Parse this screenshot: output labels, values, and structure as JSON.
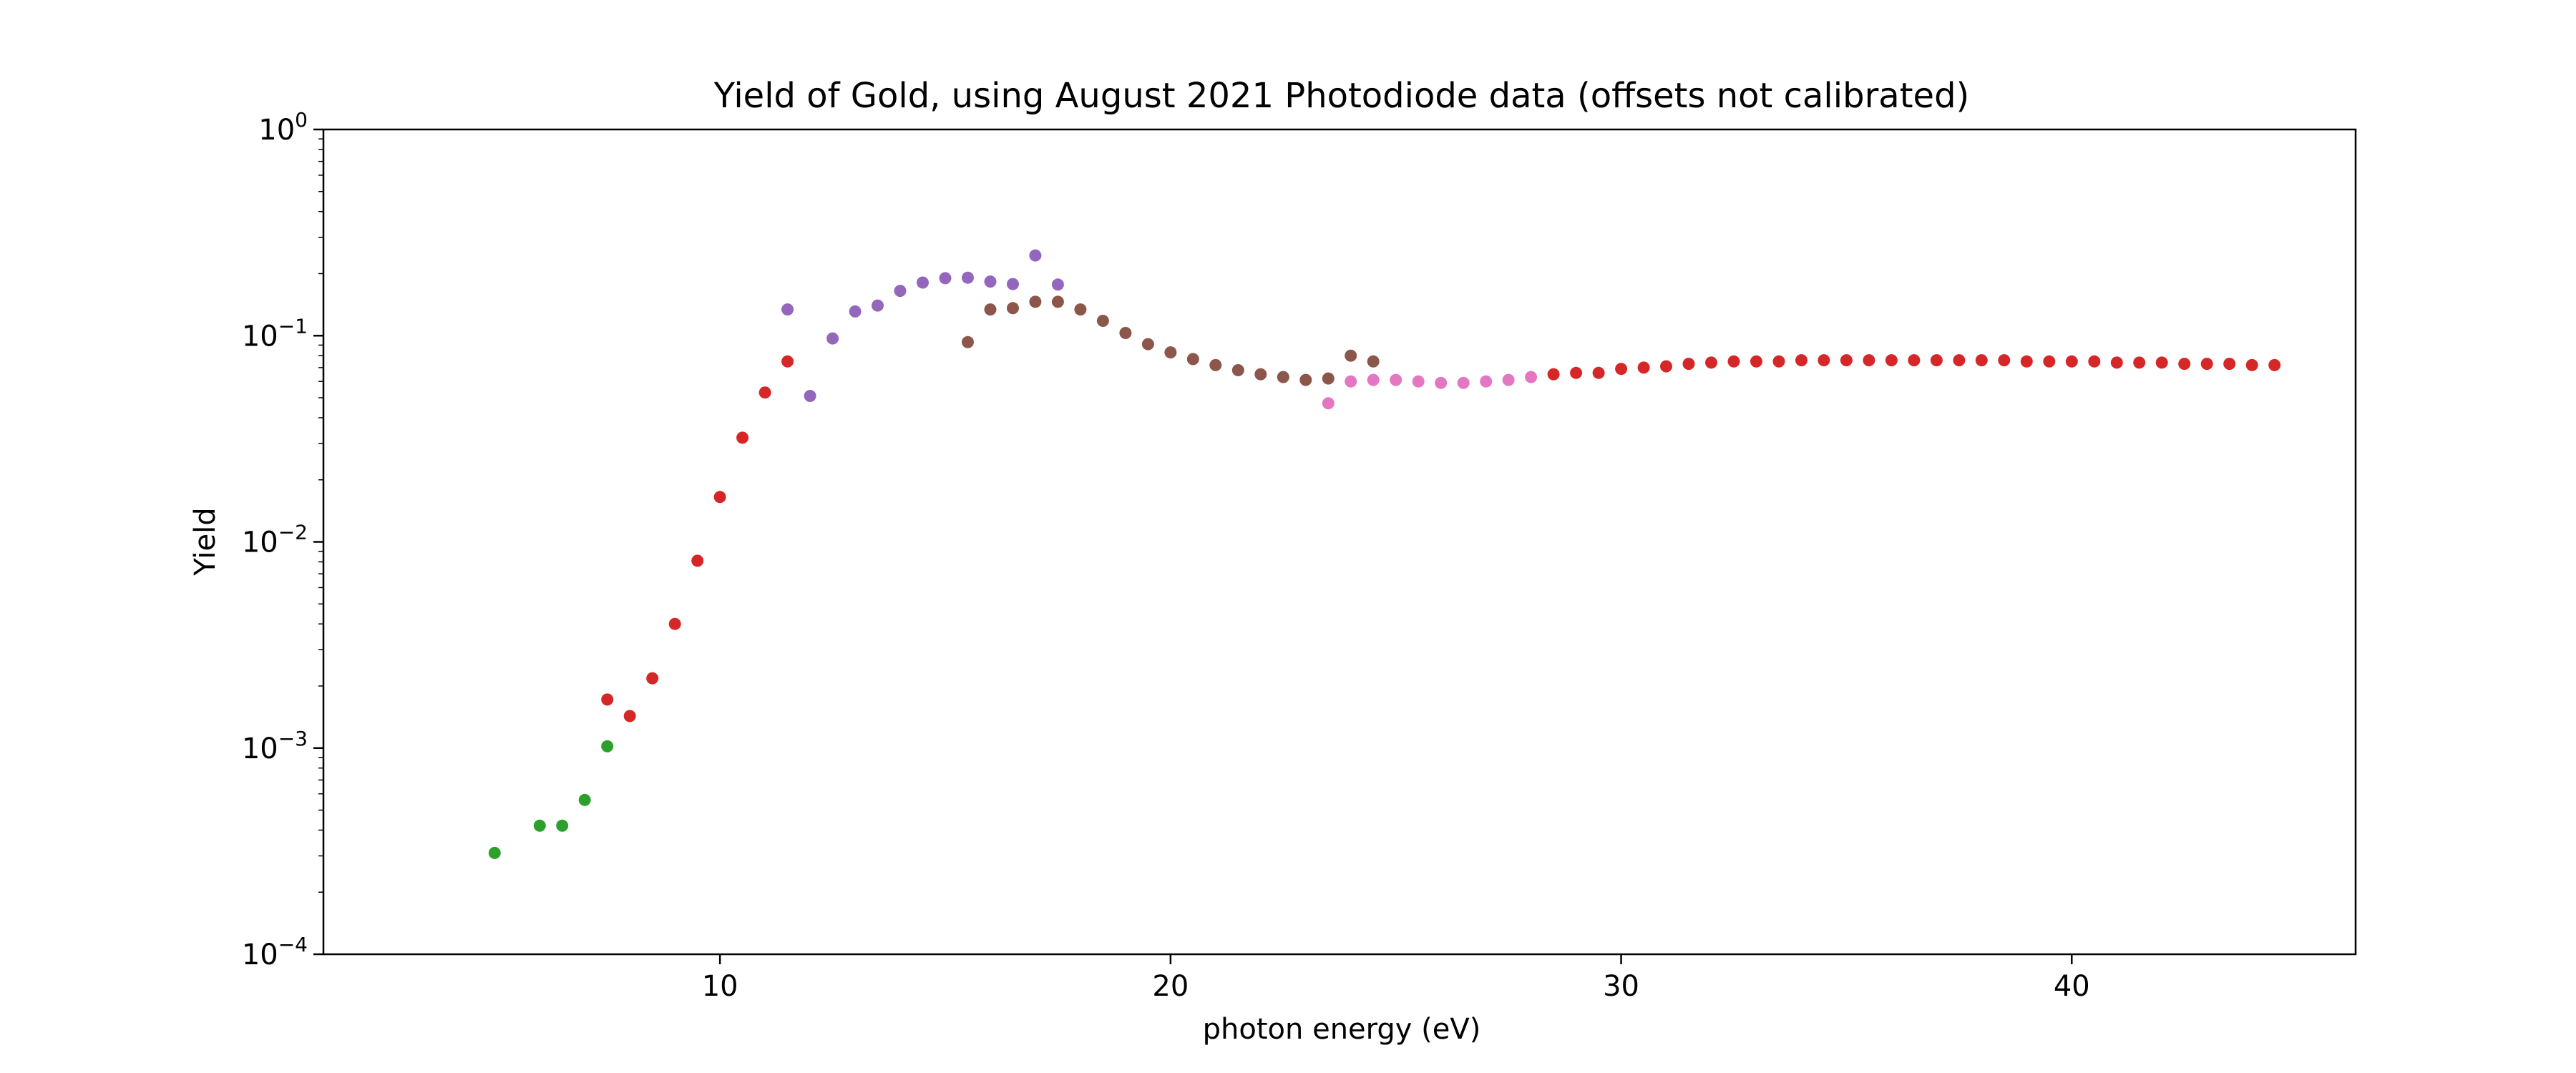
{
  "chart_data": {
    "type": "scatter",
    "title": "Yield of Gold, using August 2021 Photodiode data (offsets not calibrated)",
    "xlabel": "photon energy (eV)",
    "ylabel": "Yield",
    "xlim": [
      1.2,
      46.3
    ],
    "ylim": [
      0.0001,
      1
    ],
    "yscale": "log",
    "grid": false,
    "legend": "none",
    "x_ticks": [
      {
        "value": 10,
        "label": "10"
      },
      {
        "value": 20,
        "label": "20"
      },
      {
        "value": 30,
        "label": "30"
      },
      {
        "value": 40,
        "label": "40"
      }
    ],
    "y_ticks": [
      {
        "value": 0.0001,
        "base": "10",
        "exp": "−4"
      },
      {
        "value": 0.001,
        "base": "10",
        "exp": "−3"
      },
      {
        "value": 0.01,
        "base": "10",
        "exp": "−2"
      },
      {
        "value": 0.1,
        "base": "10",
        "exp": "−1"
      },
      {
        "value": 1,
        "base": "10",
        "exp": "0"
      }
    ],
    "series": [
      {
        "name": "green",
        "color": "#2ca02c",
        "x": [
          5.0,
          6.0,
          6.5,
          7.0,
          7.5
        ],
        "y": [
          0.00031,
          0.00042,
          0.00042,
          0.00056,
          0.00102
        ]
      },
      {
        "name": "red-low",
        "color": "#d62728",
        "x": [
          7.5,
          8.0,
          8.5,
          9.0,
          9.5,
          10.0,
          10.5,
          11.0,
          11.5
        ],
        "y": [
          0.00172,
          0.00143,
          0.00218,
          0.004,
          0.0081,
          0.0165,
          0.032,
          0.053,
          0.075
        ]
      },
      {
        "name": "purple",
        "color": "#9467bd",
        "x": [
          11.5,
          12.0,
          12.5,
          13.0,
          13.5,
          14.0,
          14.5,
          15.0,
          15.5,
          16.0,
          16.5,
          17.0,
          17.5
        ],
        "y": [
          0.134,
          0.051,
          0.097,
          0.131,
          0.14,
          0.165,
          0.181,
          0.19,
          0.191,
          0.183,
          0.178,
          0.245,
          0.177
        ]
      },
      {
        "name": "brown",
        "color": "#8c564b",
        "x": [
          15.5,
          16.0,
          16.5,
          17.0,
          17.5,
          18.0,
          18.5,
          19.0,
          19.5,
          20.0,
          20.5,
          21.0,
          21.5,
          22.0,
          22.5,
          23.0,
          23.5,
          24.0,
          24.5
        ],
        "y": [
          0.093,
          0.134,
          0.136,
          0.146,
          0.146,
          0.134,
          0.118,
          0.103,
          0.091,
          0.083,
          0.077,
          0.072,
          0.068,
          0.065,
          0.063,
          0.061,
          0.062,
          0.08,
          0.075
        ]
      },
      {
        "name": "pink",
        "color": "#e377c2",
        "x": [
          23.5,
          24.0,
          24.5,
          25.0,
          25.5,
          26.0,
          26.5,
          27.0,
          27.5,
          28.0
        ],
        "y": [
          0.047,
          0.06,
          0.061,
          0.061,
          0.06,
          0.059,
          0.059,
          0.06,
          0.061,
          0.063
        ]
      },
      {
        "name": "red-high",
        "color": "#d62728",
        "x": [
          28.5,
          29.0,
          29.5,
          30.0,
          30.5,
          31.0,
          31.5,
          32.0,
          32.5,
          33.0,
          33.5,
          34.0,
          34.5,
          35.0,
          35.5,
          36.0,
          36.5,
          37.0,
          37.5,
          38.0,
          38.5,
          39.0,
          39.5,
          40.0,
          40.5,
          41.0,
          41.5,
          42.0,
          42.5,
          43.0,
          43.5,
          44.0,
          44.5
        ],
        "y": [
          0.065,
          0.066,
          0.066,
          0.069,
          0.07,
          0.071,
          0.073,
          0.074,
          0.075,
          0.075,
          0.075,
          0.076,
          0.076,
          0.076,
          0.076,
          0.076,
          0.076,
          0.076,
          0.076,
          0.076,
          0.076,
          0.075,
          0.075,
          0.075,
          0.075,
          0.074,
          0.074,
          0.074,
          0.073,
          0.073,
          0.073,
          0.072,
          0.072
        ]
      }
    ]
  }
}
